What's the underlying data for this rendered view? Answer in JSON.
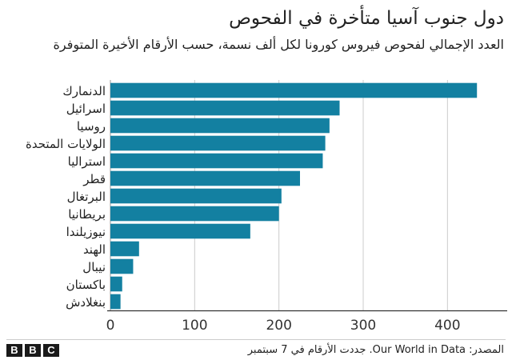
{
  "chart_data": {
    "type": "bar",
    "orientation": "horizontal",
    "title": "دول جنوب آسيا متأخرة في الفحوص",
    "subtitle": "العدد الإجمالي لفحوص فيروس كورونا لكل ألف نسمة، حسب الأرقام الأخيرة المتوفرة",
    "categories": [
      "الدنمارك",
      "اسرائيل",
      "روسيا",
      "الولايات المتحدة",
      "استراليا",
      "قطر",
      "البرتغال",
      "بريطانيا",
      "نيوزيلندا",
      "الهند",
      "نيبال",
      "باكستان",
      "بنغلادش"
    ],
    "values": [
      435,
      272,
      260,
      255,
      252,
      225,
      203,
      200,
      166,
      34,
      27,
      14,
      12
    ],
    "xlim": [
      0,
      450
    ],
    "xticks": [
      "0",
      "100",
      "200",
      "300",
      "400"
    ],
    "grid": true,
    "bar_color": "#1380a1"
  },
  "footer": {
    "logo": [
      "B",
      "B",
      "C"
    ],
    "source": "المصدر: Our World in Data. جددت الأرقام في 7 سبتمبر"
  }
}
